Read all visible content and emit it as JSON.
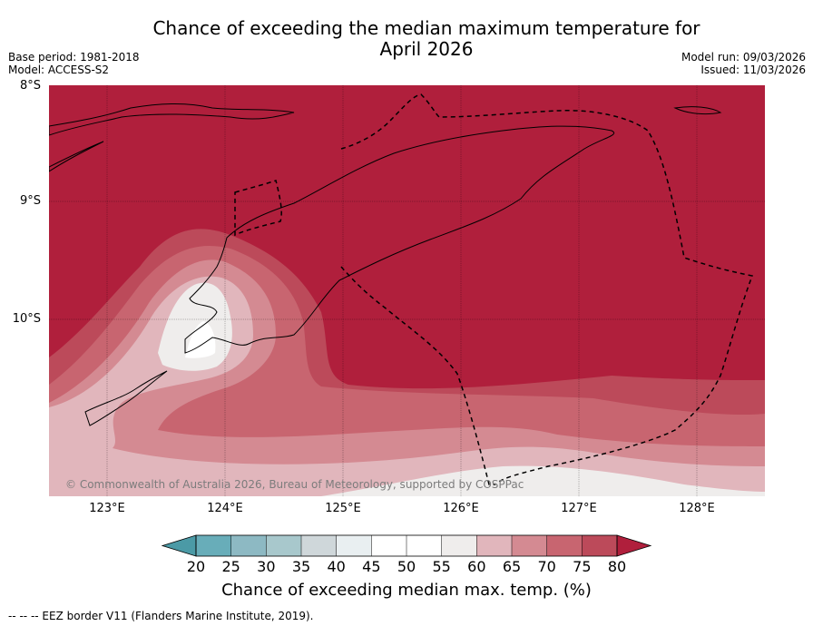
{
  "title_line1": "Chance of exceeding the median maximum temperature for",
  "title_line2": "April 2026",
  "meta_left": {
    "base_period": "Base period: 1981-2018",
    "model": "Model: ACCESS-S2"
  },
  "meta_right": {
    "model_run": "Model run: 09/03/2026",
    "issued": "Issued: 11/03/2026"
  },
  "map": {
    "lat_labels": [
      "8°S",
      "9°S",
      "10°S"
    ],
    "lon_labels": [
      "123°E",
      "124°E",
      "125°E",
      "126°E",
      "127°E",
      "128°E"
    ],
    "copyright": "© Commonwealth of Australia 2026, Bureau of Meteorology, supported by COSPPac"
  },
  "colorbar": {
    "ticks": [
      "20",
      "25",
      "30",
      "35",
      "40",
      "45",
      "50",
      "55",
      "60",
      "65",
      "70",
      "75",
      "80"
    ],
    "colors": [
      "#4b9aa6",
      "#68adb9",
      "#8db9c3",
      "#a8c8cc",
      "#cfd7da",
      "#e9eff1",
      "#ffffff",
      "#ffffff",
      "#efedec",
      "#e1b6bc",
      "#d48a92",
      "#c86570",
      "#bc4a5a",
      "#b01f3c"
    ],
    "label": "Chance of exceeding median max. temp. (%)"
  },
  "legend_note": "--  --  -- EEZ border V11 (Flanders Marine Institute, 2019)."
}
